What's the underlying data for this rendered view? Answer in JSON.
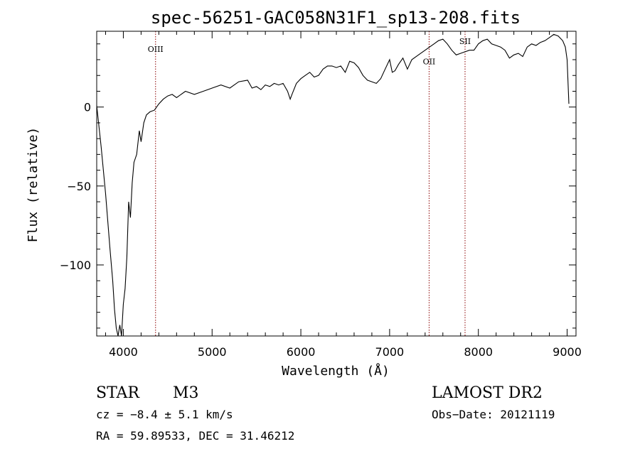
{
  "chart_data": {
    "type": "line",
    "title": "spec-56251-GAC058N31F1_sp13-208.fits",
    "xlabel": "Wavelength (Å)",
    "ylabel": "Flux (relative)",
    "xlim": [
      3700,
      9100
    ],
    "ylim": [
      -145,
      48
    ],
    "x_ticks": [
      4000,
      5000,
      6000,
      7000,
      8000,
      9000
    ],
    "y_ticks": [
      0,
      -50,
      -100
    ],
    "grid": false,
    "series": [
      {
        "x": [
          3700,
          3750,
          3800,
          3850,
          3880,
          3900,
          3920,
          3940,
          3960,
          3980,
          4000,
          4020,
          4040,
          4060,
          4080,
          4100,
          4120,
          4150,
          4180,
          4200,
          4230,
          4260,
          4300,
          4350,
          4400,
          4450,
          4500,
          4550,
          4600,
          4700,
          4800,
          4900,
          5000,
          5100,
          5200,
          5300,
          5400,
          5450,
          5500,
          5550,
          5600,
          5650,
          5700,
          5750,
          5800,
          5850,
          5880,
          5900,
          5950,
          6000,
          6050,
          6100,
          6150,
          6200,
          6250,
          6300,
          6350,
          6400,
          6450,
          6500,
          6550,
          6600,
          6650,
          6700,
          6750,
          6800,
          6850,
          6900,
          6950,
          7000,
          7030,
          7060,
          7100,
          7150,
          7200,
          7250,
          7300,
          7350,
          7400,
          7450,
          7500,
          7550,
          7600,
          7650,
          7700,
          7750,
          7800,
          7850,
          7900,
          7950,
          8000,
          8050,
          8100,
          8150,
          8200,
          8250,
          8300,
          8350,
          8400,
          8450,
          8500,
          8550,
          8600,
          8650,
          8700,
          8750,
          8800,
          8850,
          8900,
          8950,
          8980,
          9000,
          9020
        ],
        "y": [
          1,
          -25,
          -55,
          -90,
          -110,
          -128,
          -140,
          -145,
          -138,
          -145,
          -125,
          -115,
          -95,
          -60,
          -70,
          -48,
          -35,
          -30,
          -15,
          -22,
          -10,
          -5,
          -3,
          -2,
          2,
          5,
          7,
          8,
          6,
          10,
          8,
          10,
          12,
          14,
          12,
          16,
          17,
          12,
          13,
          11,
          14,
          13,
          15,
          14,
          15,
          10,
          5,
          8,
          15,
          18,
          20,
          22,
          19,
          20,
          24,
          26,
          26,
          25,
          26,
          22,
          29,
          28,
          25,
          20,
          17,
          16,
          15,
          18,
          24,
          30,
          22,
          23,
          27,
          31,
          24,
          30,
          32,
          34,
          36,
          38,
          40,
          42,
          43,
          40,
          36,
          33,
          34,
          35,
          36,
          36,
          40,
          42,
          43,
          40,
          39,
          38,
          36,
          31,
          33,
          34,
          32,
          38,
          40,
          39,
          41,
          42,
          44,
          46,
          45,
          42,
          38,
          30,
          2
        ]
      }
    ],
    "annotations": [
      {
        "label": "OIII",
        "x": 4363,
        "label_y": 35
      },
      {
        "label": "OII",
        "x": 7445,
        "label_y": 27
      },
      {
        "label": "SII",
        "x": 7850,
        "label_y": 40
      }
    ]
  },
  "info": {
    "object_class": "STAR",
    "subclass": "M3",
    "survey": "LAMOST DR2",
    "cz": "cz = −8.4 ± 5.1 km/s",
    "obs_date": "Obs−Date: 20121119",
    "coords": "RA =  59.89533, DEC =  31.46212"
  },
  "colors": {
    "line": "#000000",
    "marker_line": "#8b0000"
  }
}
